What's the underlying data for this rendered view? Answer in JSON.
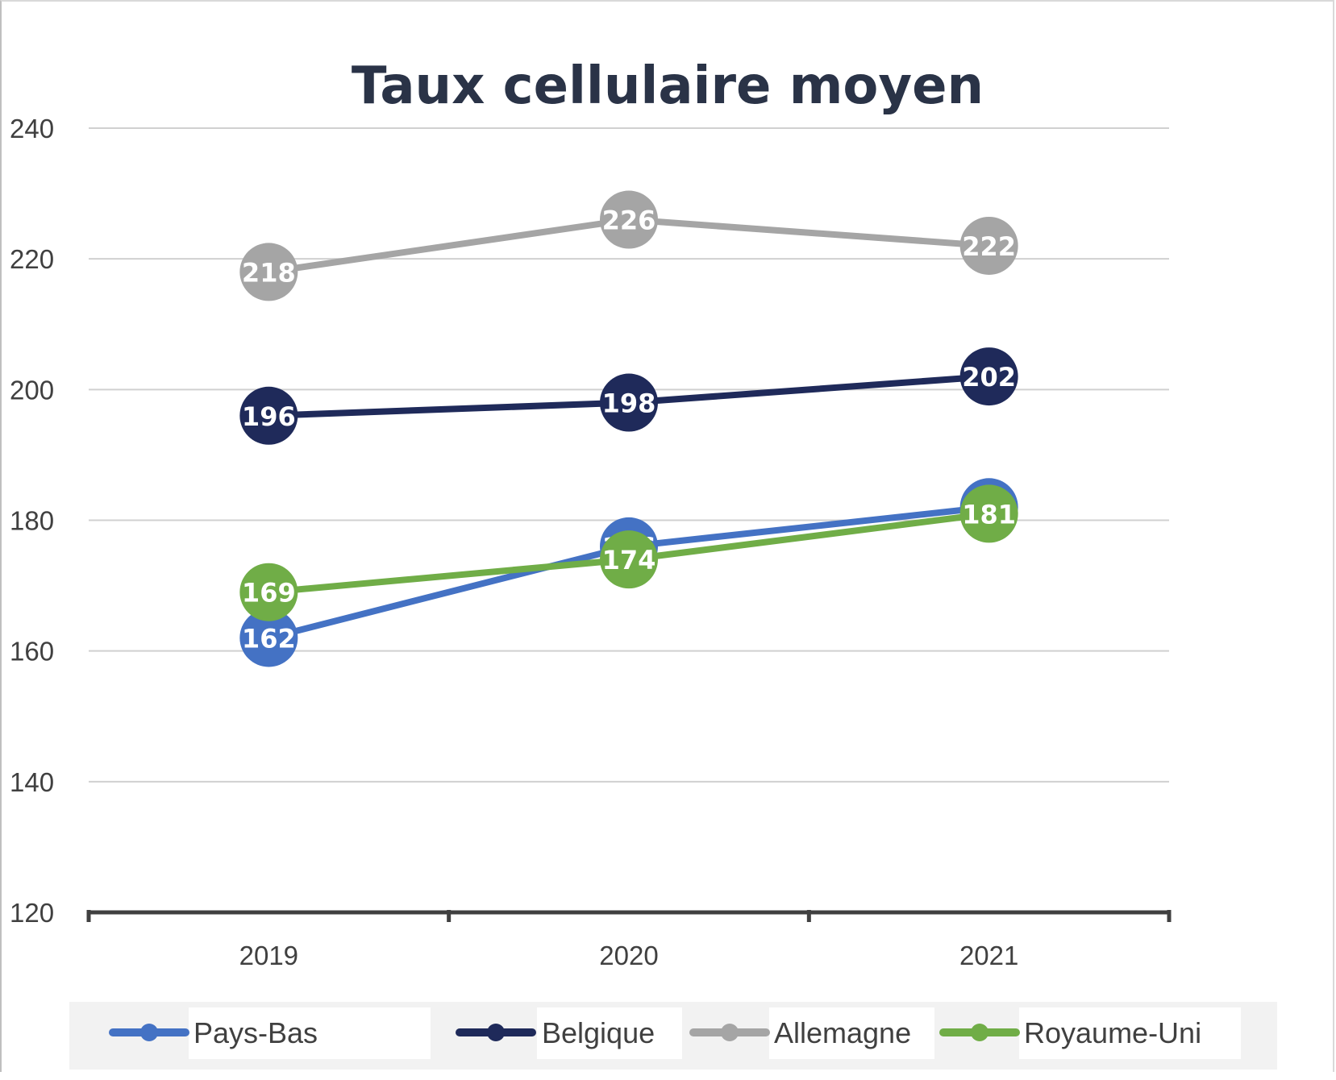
{
  "chart_data": {
    "type": "line",
    "title": "Taux cellulaire moyen",
    "xlabel": "",
    "ylabel": "",
    "categories": [
      "2019",
      "2020",
      "2021"
    ],
    "ylim": [
      120,
      240
    ],
    "yticks": [
      120,
      140,
      160,
      180,
      200,
      220,
      240
    ],
    "grid": true,
    "legend_position": "bottom",
    "series": [
      {
        "name": "Pays-Bas",
        "color": "#4472c4",
        "values": [
          162,
          176,
          182
        ]
      },
      {
        "name": "Belgique",
        "color": "#1f2a5a",
        "values": [
          196,
          198,
          202
        ]
      },
      {
        "name": "Allemagne",
        "color": "#a5a5a5",
        "values": [
          218,
          226,
          222
        ]
      },
      {
        "name": "Royaume-Uni",
        "color": "#70ad47",
        "values": [
          169,
          174,
          181
        ]
      }
    ]
  }
}
